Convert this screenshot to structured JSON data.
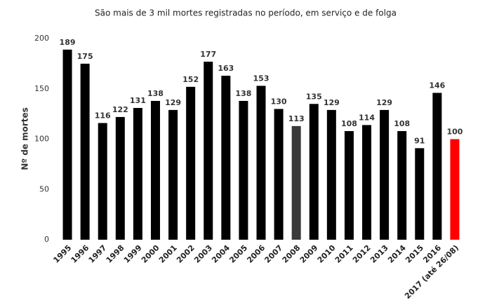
{
  "chart_data": {
    "type": "bar",
    "title": "São mais de 3 mil mortes registradas no período, em serviço e de folga",
    "y_label": "Nº de mortes",
    "categories": [
      "1995",
      "1996",
      "1997",
      "1998",
      "1999",
      "2000",
      "2001",
      "2002",
      "2003",
      "2004",
      "2005",
      "2006",
      "2007",
      "2008",
      "2009",
      "2010",
      "2011",
      "2012",
      "2013",
      "2014",
      "2015",
      "2016",
      "2017 (até 26/08)"
    ],
    "values": [
      189,
      175,
      116,
      122,
      131,
      138,
      129,
      152,
      177,
      163,
      138,
      153,
      130,
      113,
      135,
      129,
      108,
      114,
      129,
      108,
      91,
      146,
      100
    ],
    "colors": [
      "#000000",
      "#000000",
      "#000000",
      "#000000",
      "#000000",
      "#000000",
      "#000000",
      "#000000",
      "#000000",
      "#000000",
      "#000000",
      "#000000",
      "#000000",
      "#3a3a3a",
      "#000000",
      "#000000",
      "#000000",
      "#000000",
      "#000000",
      "#000000",
      "#000000",
      "#000000",
      "#ff0000"
    ],
    "ylim": [
      0,
      200
    ],
    "yticks": [
      0,
      50,
      100,
      150,
      200
    ],
    "grid": false
  }
}
